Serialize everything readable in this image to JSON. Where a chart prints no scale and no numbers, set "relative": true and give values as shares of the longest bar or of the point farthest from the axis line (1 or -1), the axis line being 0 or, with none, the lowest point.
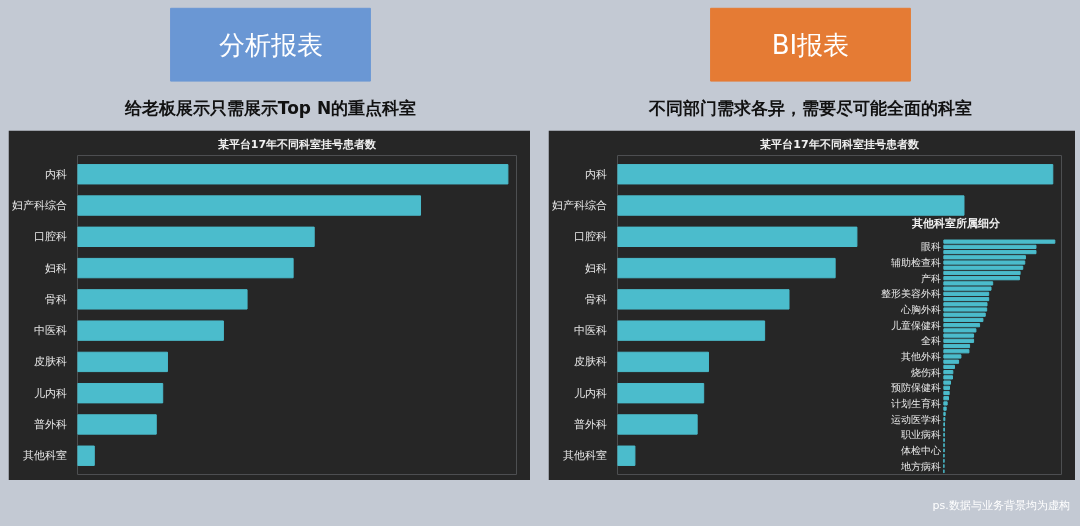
{
  "chart_data": [
    {
      "type": "bar",
      "orientation": "horizontal",
      "relative": true,
      "title": "某平台17年不同科室挂号患者数",
      "categories": [
        "内科",
        "妇产科综合",
        "口腔科",
        "妇科",
        "骨科",
        "中医科",
        "皮肤科",
        "儿内科",
        "普外科",
        "其他科室"
      ],
      "values": [
        1,
        0.797,
        0.55,
        0.501,
        0.394,
        0.339,
        0.209,
        0.198,
        0.183,
        0.039
      ],
      "color": "#4bbccc",
      "annotations": [
        "分析报表",
        "给老板展示只需展示Top N的重点科室"
      ]
    },
    {
      "type": "bar",
      "orientation": "horizontal",
      "relative": true,
      "title": "某平台17年不同科室挂号患者数",
      "categories": [
        "内科",
        "妇产科综合",
        "口腔科",
        "妇科",
        "骨科",
        "中医科",
        "皮肤科",
        "儿内科",
        "普外科",
        "其他科室"
      ],
      "values": [
        1,
        0.796,
        0.55,
        0.5,
        0.394,
        0.338,
        0.209,
        0.198,
        0.183,
        0.04
      ],
      "color": "#4bbccc",
      "annotations": [
        "BI报表",
        "不同部门需求各异，需要尽可能全面的科室",
        "ps.数据与业务背景均为虚构"
      ]
    },
    {
      "type": "bar",
      "orientation": "horizontal",
      "relative": true,
      "title": "其他科室所属细分",
      "categories": [
        null,
        "眼科",
        null,
        null,
        "辅助检查科",
        null,
        null,
        "产科",
        null,
        null,
        "整形美容外科",
        null,
        null,
        "心胸外科",
        null,
        null,
        "儿童保健科",
        null,
        null,
        "全科",
        null,
        null,
        "其他外科",
        null,
        null,
        "烧伤科",
        null,
        null,
        "预防保健科",
        null,
        null,
        "计划生育科",
        null,
        null,
        "运动医学科",
        null,
        null,
        "职业病科",
        null,
        null,
        "体检中心",
        null,
        null,
        "地方病科",
        null
      ],
      "values": [
        1,
        0.83,
        0.83,
        0.735,
        0.729,
        0.711,
        0.687,
        0.681,
        0.44,
        0.425,
        0.404,
        0.404,
        0.389,
        0.386,
        0.373,
        0.352,
        0.322,
        0.289,
        0.268,
        0.268,
        0.232,
        0.226,
        0.154,
        0.133,
        0.096,
        0.081,
        0.078,
        0.06,
        0.051,
        0.048,
        0.042,
        0.03,
        0.021,
        0.012,
        0.009,
        0.006,
        0.005,
        0.004,
        0.004,
        0.003,
        0.003,
        0.002,
        0.002,
        0.001,
        0.001
      ],
      "color": "#4bbccc"
    }
  ]
}
